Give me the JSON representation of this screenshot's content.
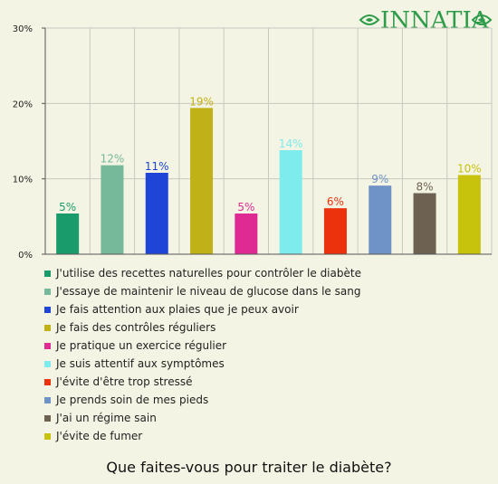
{
  "brand": {
    "logo_text": "INNATIA",
    "color": "#2e9c4a"
  },
  "chart_data": {
    "type": "bar",
    "title": "Que faites-vous pour traiter le diabète?",
    "yticks": [
      "0%",
      "10%",
      "20%",
      "30%"
    ],
    "ylim": [
      0,
      30
    ],
    "grid": true,
    "legend_position": "bottom",
    "categories": [
      "J'utilise des recettes naturelles pour contrôler le diabète",
      "J'essaye de maintenir le niveau de glucose dans le sang",
      "Je fais attention aux plaies que je peux avoir",
      "Je fais des contrôles réguliers",
      "Je pratique un exercice régulier",
      "Je suis attentif aux symptômes",
      "J'évite d'être trop stressé",
      "Je prends soin de mes pieds",
      "J'ai un régime sain",
      "J'évite de fumer"
    ],
    "values": [
      5.4,
      11.8,
      10.8,
      19.4,
      5.4,
      13.8,
      6.1,
      9.1,
      8.1,
      10.5
    ],
    "labels": [
      "5%",
      "12%",
      "11%",
      "19%",
      "5%",
      "14%",
      "6%",
      "9%",
      "8%",
      "10%"
    ],
    "colors": [
      "#1a9b6c",
      "#76b89a",
      "#1f45d6",
      "#c1b119",
      "#df2a94",
      "#7eebec",
      "#ec310d",
      "#6f92c7",
      "#6d6252",
      "#c7c20c"
    ]
  }
}
